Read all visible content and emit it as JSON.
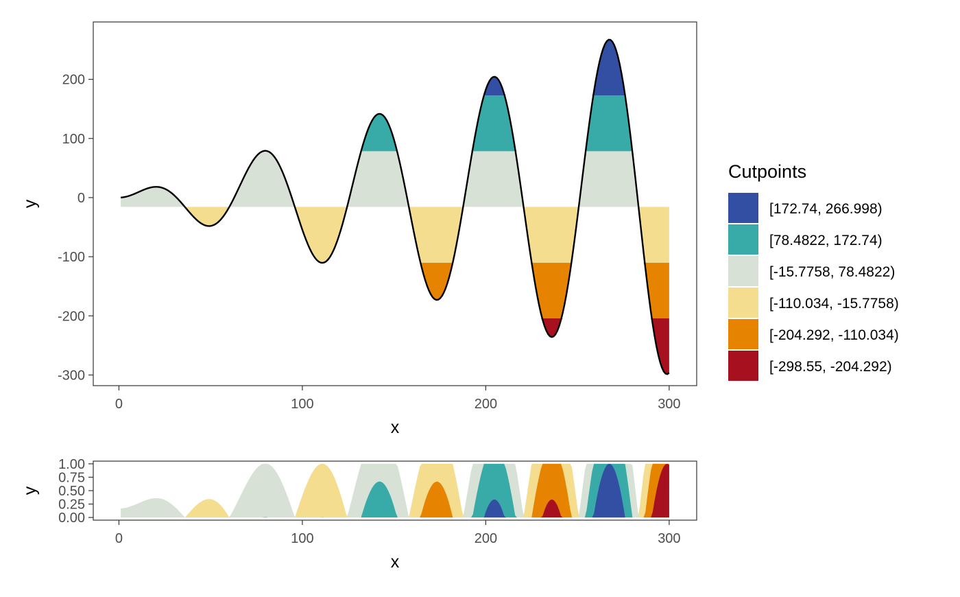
{
  "chart_data": [
    {
      "type": "area",
      "function": "y = x * sin(x / 10) (sampled x = 1..300)",
      "x_range": [
        1,
        300
      ],
      "xlabel": "x",
      "ylabel": "y",
      "xlim": [
        -14,
        315
      ],
      "ylim": [
        -318,
        297
      ],
      "xticks": [
        "0",
        "100",
        "200",
        "300"
      ],
      "yticks": [
        "200",
        "100",
        "0",
        "-100",
        "-200",
        "-300"
      ],
      "xtick_values": [
        0,
        100,
        200,
        300
      ],
      "ytick_values": [
        200,
        100,
        0,
        -100,
        -200,
        -300
      ],
      "grid": false,
      "legend": {
        "title": "Cutpoints",
        "placement": "right",
        "entries": [
          {
            "label": "[172.74, 266.998)",
            "color": "#334FA3"
          },
          {
            "label": "[78.4822, 172.74)",
            "color": "#38ABA8"
          },
          {
            "label": "[-15.7758, 78.4822)",
            "color": "#D8E1D6"
          },
          {
            "label": "[-110.034, -15.7758)",
            "color": "#F5DD90"
          },
          {
            "label": "[-204.292, -110.034)",
            "color": "#E68300"
          },
          {
            "label": "[-298.55, -204.292)",
            "color": "#A6101F"
          }
        ]
      },
      "cutpoints": [
        -298.55,
        -204.292,
        -110.034,
        -15.7758,
        78.4822,
        172.74,
        266.998
      ],
      "baseline": -15.7758
    },
    {
      "type": "area",
      "description_of_values": "horizon bands: each band height is the normalized fill (0 to 1) of its cutpoint interval",
      "xlabel": "x",
      "ylabel": "y",
      "xlim": [
        -14,
        315
      ],
      "ylim": [
        -0.05,
        1.05
      ],
      "xticks": [
        "0",
        "100",
        "200",
        "300"
      ],
      "yticks": [
        "1.00",
        "0.75",
        "0.50",
        "0.25",
        "0.00"
      ],
      "xtick_values": [
        0,
        100,
        200,
        300
      ],
      "ytick_values": [
        1,
        0.75,
        0.5,
        0.25,
        0
      ],
      "grid": false
    }
  ],
  "colors": {
    "band_1": "#334FA3",
    "band_2": "#38ABA8",
    "band_3": "#D8E1D6",
    "band_4": "#F5DD90",
    "band_5": "#E68300",
    "band_6": "#A6101F",
    "curve": "#000000",
    "panel_border": "#333333"
  }
}
